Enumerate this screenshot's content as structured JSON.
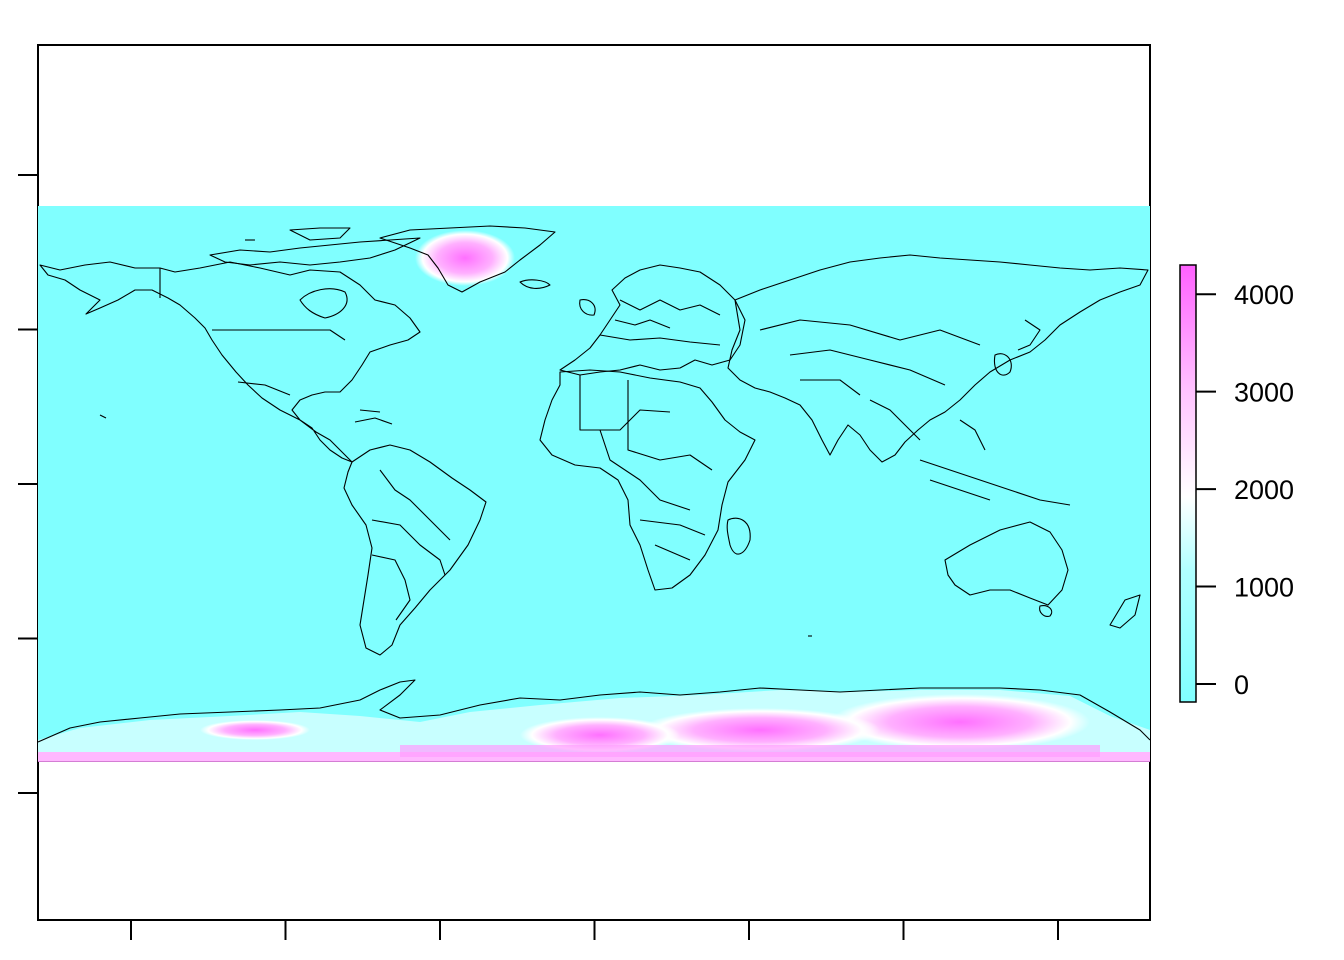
{
  "map": {
    "fill_color": "#80ffff",
    "high_color": "#ff80ff",
    "mid_color": "#ffffff",
    "outline_color": "#000000",
    "x_ticks_count": 7,
    "y_ticks_count": 5
  },
  "colorbar": {
    "min": 0,
    "max": 4300,
    "ticks": [
      {
        "value": 0,
        "label": "0"
      },
      {
        "value": 1000,
        "label": "1000"
      },
      {
        "value": 2000,
        "label": "2000"
      },
      {
        "value": 3000,
        "label": "3000"
      },
      {
        "value": 4000,
        "label": "4000"
      }
    ],
    "gradient_colors": [
      "#80ffff",
      "#80ffff",
      "#ffffff",
      "#ff80ff"
    ]
  }
}
